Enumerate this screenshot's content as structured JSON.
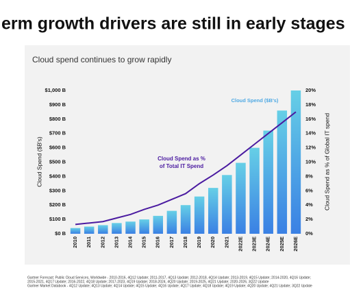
{
  "headline": "erm growth drivers are still in early stages",
  "footnotes": [
    "Gartner Forecast: Public Cloud Services, Worldwide - 2010-2016, 4Q12 Update; 2011-2017, 4Q13 Update; 2012-2018, 4Q14 Update; 2013-2019, 4Q15 Update; 2014-2020, 4Q16 Update;",
    "2015-2021, 4Q17 Update; 2016-2022, 4Q18 Update; 2017-2023, 4Q19 Update; 2018-2024, 4Q20 Update; 2019-2025, 4Q21 Update; 2020-2026, 3Q22 Update",
    "Gartner Market Databook - 4Q12 Update; 4Q13 Update; 4Q14 Update; 4Q15 Update; 4Q16 Update; 4Q17 Update; 4Q18 Update; 4Q19 Update; 4Q20 Update; 4Q21 Update; 3Q22 Update"
  ],
  "chart_data": {
    "type": "bar",
    "title": "Cloud spend continues to grow rapidly",
    "y_label": "Cloud Spend ($B's)",
    "y2_label": "Cloud Spend as % of Global IT spend",
    "categories": [
      "2010",
      "2011",
      "2012",
      "2013",
      "2014",
      "2015",
      "2016",
      "2017",
      "2018",
      "2019",
      "2020",
      "2021",
      "2022E",
      "2023E",
      "2024E",
      "2025E",
      "2026E"
    ],
    "series": [
      {
        "type": "bar",
        "name": "Cloud Spend ($B's)",
        "color": [
          "#66cfe6",
          "#3a80e4"
        ],
        "label_color": "#4fa9e3",
        "values": [
          40,
          50,
          60,
          75,
          85,
          100,
          125,
          160,
          200,
          260,
          320,
          410,
          495,
          600,
          720,
          860,
          1000
        ]
      },
      {
        "type": "line",
        "axis": "y2",
        "name_lines": [
          "Cloud Spend as %",
          "of Total IT Spend"
        ],
        "color": "#4a1aa0",
        "values": [
          1.3,
          1.5,
          1.7,
          2.2,
          2.7,
          3.4,
          4.0,
          4.8,
          5.6,
          7.0,
          8.2,
          9.5,
          11.0,
          12.5,
          14.0,
          15.5,
          17.0
        ]
      }
    ],
    "ylim": [
      0,
      1000
    ],
    "yticks": [
      {
        "value": 0,
        "label": "$0 B"
      },
      {
        "value": 100,
        "label": "$100 B"
      },
      {
        "value": 200,
        "label": "$200 B"
      },
      {
        "value": 300,
        "label": "$300 B"
      },
      {
        "value": 400,
        "label": "$400 B"
      },
      {
        "value": 500,
        "label": "$500 B"
      },
      {
        "value": 600,
        "label": "$600 B"
      },
      {
        "value": 700,
        "label": "$700 B"
      },
      {
        "value": 800,
        "label": "$800 B"
      },
      {
        "value": 900,
        "label": "$900 B"
      },
      {
        "value": 1000,
        "label": "$1,000 B"
      }
    ],
    "y2lim": [
      0,
      20
    ],
    "y2ticks": [
      {
        "value": 0,
        "label": "0%"
      },
      {
        "value": 2,
        "label": "2%"
      },
      {
        "value": 4,
        "label": "4%"
      },
      {
        "value": 6,
        "label": "6%"
      },
      {
        "value": 8,
        "label": "8%"
      },
      {
        "value": 10,
        "label": "10%"
      },
      {
        "value": 12,
        "label": "12%"
      },
      {
        "value": 14,
        "label": "14%"
      },
      {
        "value": 16,
        "label": "16%"
      },
      {
        "value": 18,
        "label": "18%"
      },
      {
        "value": 20,
        "label": "20%"
      }
    ]
  }
}
